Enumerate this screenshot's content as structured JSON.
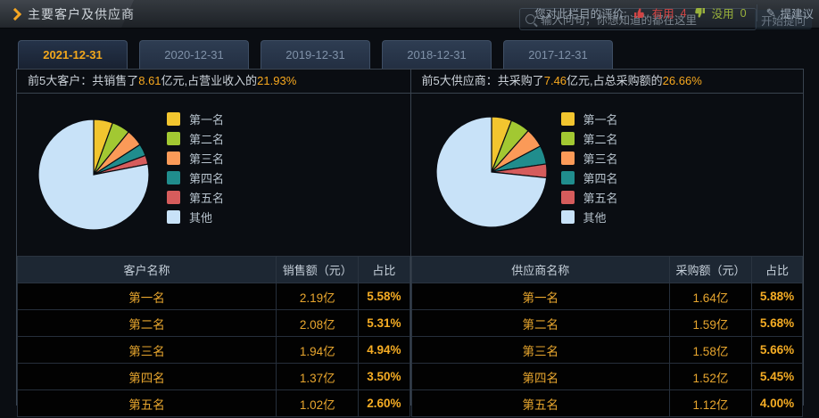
{
  "titlebar": {
    "title": "主要客户及供应商",
    "rating_label": "您对此栏目的评价:",
    "useful": {
      "label": "有用",
      "count": "4"
    },
    "useless": {
      "label": "没用",
      "count": "0"
    },
    "suggest_label": "提建议",
    "search_placeholder": "输入问句，你想知道的都在这里",
    "ask_button": "开始提问"
  },
  "tabs": [
    {
      "label": "2021-12-31",
      "active": true
    },
    {
      "label": "2020-12-31",
      "active": false
    },
    {
      "label": "2019-12-31",
      "active": false
    },
    {
      "label": "2018-12-31",
      "active": false
    },
    {
      "label": "2017-12-31",
      "active": false
    }
  ],
  "customers": {
    "summary_prefix": "前5大客户：共销售了",
    "summary_value": "8.61",
    "summary_middle": "亿元,占营业收入的",
    "summary_percent": "21.93%",
    "table": {
      "headers": [
        "客户名称",
        "销售额（元）",
        "占比"
      ],
      "rows": [
        [
          "第一名",
          "2.19亿",
          "5.58%"
        ],
        [
          "第二名",
          "2.08亿",
          "5.31%"
        ],
        [
          "第三名",
          "1.94亿",
          "4.94%"
        ],
        [
          "第四名",
          "1.37亿",
          "3.50%"
        ],
        [
          "第五名",
          "1.02亿",
          "2.60%"
        ]
      ]
    }
  },
  "suppliers": {
    "summary_prefix": "前5大供应商：共采购了",
    "summary_value": "7.46",
    "summary_middle": "亿元,占总采购额的",
    "summary_percent": "26.66%",
    "table": {
      "headers": [
        "供应商名称",
        "采购额（元）",
        "占比"
      ],
      "rows": [
        [
          "第一名",
          "1.64亿",
          "5.88%"
        ],
        [
          "第二名",
          "1.59亿",
          "5.68%"
        ],
        [
          "第三名",
          "1.58亿",
          "5.66%"
        ],
        [
          "第四名",
          "1.52亿",
          "5.45%"
        ],
        [
          "第五名",
          "1.12亿",
          "4.00%"
        ]
      ]
    }
  },
  "chart_data": [
    {
      "type": "pie",
      "labels": [
        "第一名",
        "第二名",
        "第三名",
        "第四名",
        "第五名",
        "其他"
      ],
      "values": [
        5.58,
        5.31,
        4.94,
        3.5,
        2.6,
        78.07
      ],
      "colors": [
        "#f2c52f",
        "#a2c832",
        "#fb9a58",
        "#208d8d",
        "#d65c5c",
        "#c8e2f8"
      ],
      "legend_position": "right",
      "start_angle": -90,
      "direction": "clockwise"
    },
    {
      "type": "pie",
      "labels": [
        "第一名",
        "第二名",
        "第三名",
        "第四名",
        "第五名",
        "其他"
      ],
      "values": [
        5.88,
        5.68,
        5.66,
        5.45,
        4.0,
        73.33
      ],
      "colors": [
        "#f2c52f",
        "#a2c832",
        "#fb9a58",
        "#208d8d",
        "#d65c5c",
        "#c8e2f8"
      ],
      "legend_position": "right",
      "start_angle": -90,
      "direction": "clockwise"
    }
  ],
  "colors": {
    "accent_orange": "#f5a623",
    "useful_red": "#d04545",
    "useless_green": "#9ab23c",
    "table_value": "#e8a62e",
    "panel_bg": "#0a0d12"
  }
}
